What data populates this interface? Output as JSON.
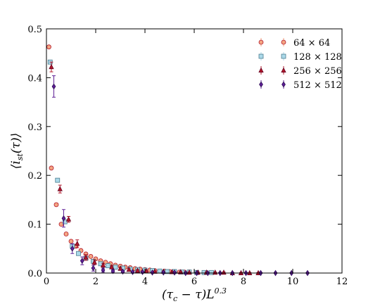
{
  "chart_data": {
    "type": "scatter",
    "xlabel": "(τ",
    "xlabel_sub": "c",
    "xlabel_rest": " − τ)L",
    "xlabel_sup": "0.3",
    "ylabel": "⟨i",
    "ylabel_sub": "st",
    "ylabel_rest": "(τ)⟩",
    "xlim": [
      0,
      12
    ],
    "ylim": [
      0,
      0.5
    ],
    "xticks": [
      "0",
      "2",
      "4",
      "6",
      "8",
      "10",
      "12"
    ],
    "yticks": [
      "0.0",
      "0.1",
      "0.2",
      "0.3",
      "0.4",
      "0.5"
    ],
    "legend_position": "top-right",
    "series": [
      {
        "name": "64 × 64",
        "marker": "circle",
        "color": "#f4a582",
        "edge": "#b2182b",
        "x": [
          0.1,
          0.2,
          0.4,
          0.6,
          0.8,
          1.0,
          1.2,
          1.4,
          1.6,
          1.8,
          2.0,
          2.2,
          2.4,
          2.6,
          2.8,
          3.0,
          3.2,
          3.4,
          3.6,
          3.8,
          4.0,
          4.2,
          4.4,
          4.6,
          4.8,
          5.0,
          5.2,
          5.4,
          5.6,
          5.8
        ],
        "y": [
          0.463,
          0.215,
          0.14,
          0.1,
          0.08,
          0.065,
          0.055,
          0.046,
          0.039,
          0.034,
          0.029,
          0.025,
          0.022,
          0.019,
          0.016,
          0.014,
          0.012,
          0.011,
          0.009,
          0.008,
          0.007,
          0.006,
          0.005,
          0.004,
          0.004,
          0.003,
          0.003,
          0.002,
          0.002,
          0.002
        ],
        "err": [
          0.003,
          0.002,
          0.003,
          0.003,
          0.003,
          0.003,
          0.002,
          0.002,
          0.002,
          0.002,
          0.002,
          0.002,
          0.001,
          0.001,
          0.001,
          0.001,
          0.001,
          0.001,
          0.001,
          0.001,
          0.001,
          0.001,
          0.001,
          0.001,
          0.001,
          0.001,
          0.001,
          0.001,
          0.001,
          0.001
        ]
      },
      {
        "name": "128 × 128",
        "marker": "square",
        "color": "#abd9e9",
        "edge": "#4d7d8f",
        "x": [
          0.15,
          0.45,
          0.75,
          1.05,
          1.3,
          1.6,
          1.9,
          2.2,
          2.5,
          2.8,
          3.1,
          3.4,
          3.7,
          4.0,
          4.3,
          4.6,
          4.9,
          5.2,
          5.5,
          5.8,
          6.1,
          6.4,
          6.7
        ],
        "y": [
          0.432,
          0.19,
          0.105,
          0.055,
          0.04,
          0.03,
          0.024,
          0.019,
          0.015,
          0.012,
          0.01,
          0.008,
          0.007,
          0.006,
          0.005,
          0.004,
          0.003,
          0.003,
          0.002,
          0.002,
          0.001,
          0.001,
          0.001
        ],
        "err": [
          0.004,
          0.003,
          0.003,
          0.004,
          0.004,
          0.003,
          0.002,
          0.002,
          0.002,
          0.002,
          0.001,
          0.001,
          0.001,
          0.001,
          0.001,
          0.001,
          0.001,
          0.001,
          0.001,
          0.001,
          0.001,
          0.001,
          0.001
        ]
      },
      {
        "name": "256 × 256",
        "marker": "triangle",
        "color": "#b2182b",
        "edge": "#67001f",
        "x": [
          0.2,
          0.55,
          0.9,
          1.25,
          1.6,
          1.95,
          2.3,
          2.65,
          3.0,
          3.35,
          3.7,
          4.05,
          4.4,
          4.75,
          5.1,
          5.45,
          5.8,
          6.15,
          6.5,
          6.85,
          7.2,
          7.55,
          7.9,
          8.25,
          8.6
        ],
        "y": [
          0.422,
          0.172,
          0.11,
          0.06,
          0.032,
          0.022,
          0.016,
          0.012,
          0.009,
          0.007,
          0.005,
          0.004,
          0.003,
          0.003,
          0.002,
          0.002,
          0.001,
          0.001,
          0.001,
          0.001,
          0.001,
          0.0,
          0.0,
          0.0,
          0.0
        ],
        "err": [
          0.01,
          0.008,
          0.006,
          0.008,
          0.006,
          0.005,
          0.004,
          0.003,
          0.003,
          0.002,
          0.002,
          0.002,
          0.001,
          0.001,
          0.001,
          0.001,
          0.001,
          0.001,
          0.001,
          0.001,
          0.001,
          0.001,
          0.001,
          0.001,
          0.001
        ]
      },
      {
        "name": "512 × 512",
        "marker": "diamond",
        "color": "#5e1f96",
        "edge": "#2d0a54",
        "x": [
          0.3,
          0.7,
          1.05,
          1.45,
          1.9,
          2.3,
          2.7,
          3.1,
          3.5,
          3.9,
          4.3,
          4.75,
          5.2,
          5.65,
          6.1,
          6.55,
          7.05,
          7.55,
          8.1,
          8.7,
          9.3,
          9.95,
          10.6
        ],
        "y": [
          0.382,
          0.112,
          0.05,
          0.025,
          0.01,
          0.006,
          0.004,
          0.003,
          0.002,
          0.002,
          0.001,
          0.001,
          0.001,
          0.0,
          0.0,
          0.0,
          0.0,
          0.0,
          0.0,
          0.0,
          0.0,
          0.0,
          0.0
        ],
        "err": [
          0.022,
          0.018,
          0.01,
          0.008,
          0.006,
          0.004,
          0.003,
          0.002,
          0.002,
          0.001,
          0.001,
          0.001,
          0.001,
          0.001,
          0.001,
          0.001,
          0.001,
          0.001,
          0.001,
          0.001,
          0.001,
          0.001,
          0.001
        ]
      }
    ]
  }
}
